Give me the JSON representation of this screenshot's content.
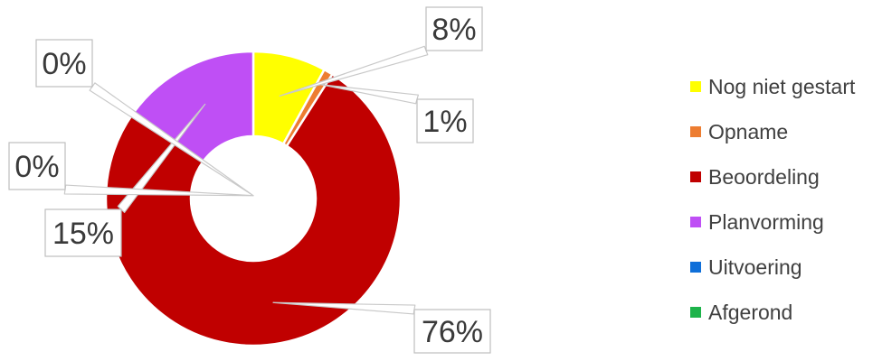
{
  "chart_data": {
    "type": "pie",
    "style": "donut",
    "categories": [
      "Nog niet gestart",
      "Opname",
      "Beoordeling",
      "Planvorming",
      "Uitvoering",
      "Afgerond"
    ],
    "values": [
      8,
      1,
      76,
      15,
      0,
      0
    ],
    "labels": [
      "8%",
      "1%",
      "76%",
      "15%",
      "0%",
      "0%"
    ],
    "colors": [
      "#ffff00",
      "#ed7d31",
      "#c00000",
      "#bf4ff5",
      "#0f6fd9",
      "#1db34a"
    ],
    "legend_position": "right",
    "title": ""
  }
}
